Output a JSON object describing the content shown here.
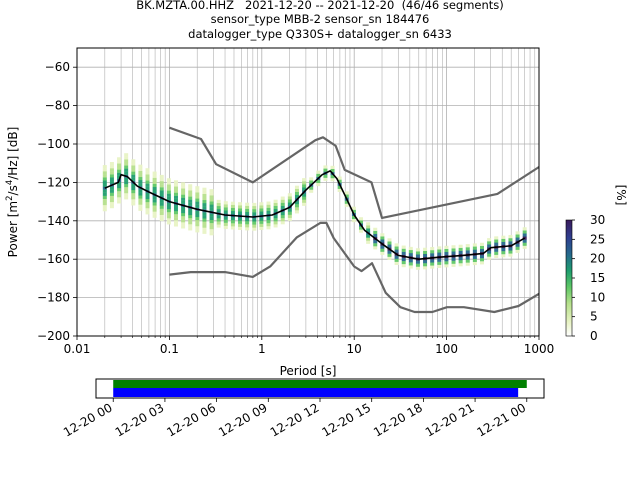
{
  "header": {
    "title_line1": "BK.MZTA.00.HHZ   2021-12-20 -- 2021-12-20  (46/46 segments)",
    "title_line2": "sensor_type MBB-2 sensor_sn 184476",
    "title_line3": "datalogger_type Q330S+ datalogger_sn 6433"
  },
  "colors": {
    "model_lines": "#666666",
    "mean_line": "#000000",
    "grid": "#b0b0b0",
    "coverage_data": "#008000",
    "coverage_gaps": "#0000ff",
    "colormap": [
      "#ffffff",
      "#e8f3c4",
      "#b6e08c",
      "#5fc766",
      "#1f9e6e",
      "#256a8c",
      "#2f3e8f",
      "#3a1b5c"
    ]
  },
  "chart_data": {
    "type": "heatmap",
    "xlabel": "Period [s]",
    "ylabel": "Power [$m^2/s^4/Hz$] [dB]",
    "x_scale": "log",
    "xlim": [
      0.01,
      1000
    ],
    "ylim": [
      -200,
      -50
    ],
    "xticks": [
      0.01,
      0.1,
      1,
      10,
      100,
      1000
    ],
    "xtick_labels": [
      "0.01",
      "0.1",
      "1",
      "10",
      "100",
      "1000"
    ],
    "yticks": [
      -200,
      -180,
      -160,
      -140,
      -120,
      -100,
      -80,
      -60
    ],
    "ytick_labels": [
      "−200",
      "−180",
      "−160",
      "−140",
      "−120",
      "−100",
      "−80",
      "−60"
    ],
    "grid": true,
    "colorbar": {
      "label": "[%]",
      "range": [
        0,
        30
      ],
      "ticks": [
        0,
        5,
        10,
        15,
        20,
        25,
        30
      ],
      "tick_labels": [
        "0",
        "5",
        "10",
        "15",
        "20",
        "25",
        "30"
      ]
    },
    "mean_psd": [
      [
        0.02,
        -123
      ],
      [
        0.025,
        -121
      ],
      [
        0.028,
        -120
      ],
      [
        0.03,
        -116
      ],
      [
        0.035,
        -117
      ],
      [
        0.045,
        -122
      ],
      [
        0.06,
        -125
      ],
      [
        0.1,
        -130
      ],
      [
        0.2,
        -134
      ],
      [
        0.4,
        -137
      ],
      [
        0.8,
        -138
      ],
      [
        1.3,
        -137
      ],
      [
        2,
        -133
      ],
      [
        3,
        -124
      ],
      [
        4.5,
        -116
      ],
      [
        5.5,
        -114
      ],
      [
        6.5,
        -118
      ],
      [
        8,
        -127
      ],
      [
        10,
        -137
      ],
      [
        13,
        -145
      ],
      [
        20,
        -152
      ],
      [
        30,
        -158
      ],
      [
        50,
        -160
      ],
      [
        80,
        -159
      ],
      [
        150,
        -158
      ],
      [
        250,
        -157
      ],
      [
        300,
        -154
      ],
      [
        500,
        -153
      ],
      [
        700,
        -149
      ]
    ],
    "high_noise_model": [
      [
        0.1,
        -91.5
      ],
      [
        0.22,
        -97.4
      ],
      [
        0.32,
        -110.5
      ],
      [
        0.8,
        -120
      ],
      [
        3.8,
        -98
      ],
      [
        4.6,
        -96.5
      ],
      [
        6.3,
        -101
      ],
      [
        7.9,
        -113.5
      ],
      [
        15.4,
        -120
      ],
      [
        20,
        -138.5
      ],
      [
        354.8,
        -126
      ],
      [
        1000,
        -112
      ]
    ],
    "low_noise_model": [
      [
        0.1,
        -168
      ],
      [
        0.17,
        -166.7
      ],
      [
        0.4,
        -166.7
      ],
      [
        0.8,
        -169.2
      ],
      [
        1.24,
        -163.7
      ],
      [
        2.4,
        -148.6
      ],
      [
        4.3,
        -141.1
      ],
      [
        5,
        -141.1
      ],
      [
        6,
        -149
      ],
      [
        10,
        -163.8
      ],
      [
        12,
        -166.2
      ],
      [
        15.6,
        -162.1
      ],
      [
        21.9,
        -177.5
      ],
      [
        31.6,
        -185
      ],
      [
        45,
        -187.5
      ],
      [
        70,
        -187.5
      ],
      [
        101,
        -185
      ],
      [
        154,
        -185
      ],
      [
        328,
        -187.5
      ],
      [
        600,
        -184.4
      ],
      [
        1000,
        -178
      ]
    ],
    "coverage": {
      "time_ticks": [
        "12-20 00",
        "12-20 03",
        "12-20 06",
        "12-20 09",
        "12-20 12",
        "12-20 15",
        "12-20 18",
        "12-20 21",
        "12-21 00"
      ],
      "time_range_hours": [
        -1,
        25
      ],
      "data_span_hours": [
        0,
        24
      ],
      "processed_span_hours": [
        0,
        23.5
      ]
    }
  }
}
